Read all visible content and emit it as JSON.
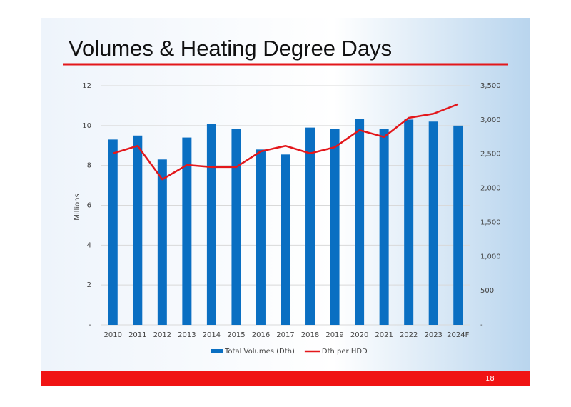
{
  "chart_data": {
    "type": "combo",
    "title": "Volumes & Heating Degree Days",
    "y_label": "Millions",
    "categories": [
      "2010",
      "2011",
      "2012",
      "2013",
      "2014",
      "2015",
      "2016",
      "2017",
      "2018",
      "2019",
      "2020",
      "2021",
      "2022",
      "2023",
      "2024F"
    ],
    "series": [
      {
        "name": "Total Volumes (Dth)",
        "type": "bar",
        "color": "#0a6fc2",
        "axis": "y",
        "values": [
          9.3,
          9.5,
          8.3,
          9.4,
          10.1,
          9.85,
          8.8,
          8.55,
          9.9,
          9.85,
          10.35,
          9.85,
          10.3,
          10.2,
          10.0
        ]
      },
      {
        "name": "Dth per HDD",
        "type": "line",
        "color": "#e3171b",
        "axis": "y2",
        "values": [
          2510,
          2620,
          2130,
          2340,
          2310,
          2310,
          2540,
          2620,
          2510,
          2600,
          2850,
          2750,
          3030,
          3090,
          3230
        ]
      }
    ],
    "ylim": [
      0,
      12
    ],
    "yticks": [
      {
        "value": 0,
        "label": "-"
      },
      2,
      4,
      6,
      8,
      10,
      12
    ],
    "y2lim": [
      0,
      3500
    ],
    "y2ticks": [
      {
        "value": 0,
        "label": "-"
      },
      500,
      {
        "value": 1000,
        "label": "1,000"
      },
      {
        "value": 1500,
        "label": "1,500"
      },
      {
        "value": 2000,
        "label": "2,000"
      },
      {
        "value": 2500,
        "label": "2,500"
      },
      {
        "value": 3000,
        "label": "3,000"
      },
      {
        "value": 3500,
        "label": "3,500"
      }
    ],
    "grid": true,
    "legend": "bottom"
  },
  "page_number": 18
}
